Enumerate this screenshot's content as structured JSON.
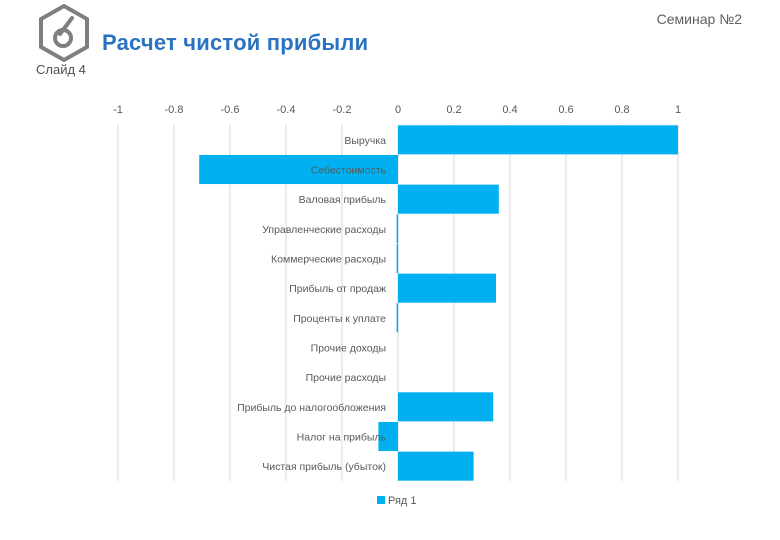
{
  "header": {
    "seminar_label": "Семинар №2",
    "title": "Расчет чистой прибыли",
    "slide_label": "Слайд 4",
    "logo_icon": "hexagon-logo-icon"
  },
  "colors": {
    "bar": "#00b0f0",
    "title": "#2a73c0",
    "grid": "#d9d9d9",
    "text": "#595959"
  },
  "chart_data": {
    "type": "bar",
    "orientation": "horizontal",
    "title": "",
    "xlabel": "",
    "ylabel": "",
    "xlim": [
      -1,
      1
    ],
    "ticks": [
      -1,
      -0.8,
      -0.6,
      -0.4,
      -0.2,
      0,
      0.2,
      0.4,
      0.6,
      0.8,
      1
    ],
    "tick_labels": [
      "-1",
      "-0.8",
      "-0.6",
      "-0.4",
      "-0.2",
      "0",
      "0.2",
      "0.4",
      "0.6",
      "0.8",
      "1"
    ],
    "tick_position": "top",
    "grid": true,
    "legend_position": "bottom",
    "categories": [
      "Выручка",
      "Себестоимость",
      "Валовая прибыль",
      "Управленческие расходы",
      "Коммерческие расходы",
      "Прибыль от продаж",
      "Проценты к уплате",
      "Прочие доходы",
      "Прочие расходы",
      "Прибыль до налогообложения",
      "Налог на прибыль",
      "Чистая прибыль (убыток)"
    ],
    "series": [
      {
        "name": "Ряд 1",
        "values": [
          1,
          -0.71,
          0.36,
          -0.005,
          -0.005,
          0.35,
          -0.005,
          0,
          0,
          0.34,
          -0.07,
          0.27
        ]
      }
    ]
  }
}
